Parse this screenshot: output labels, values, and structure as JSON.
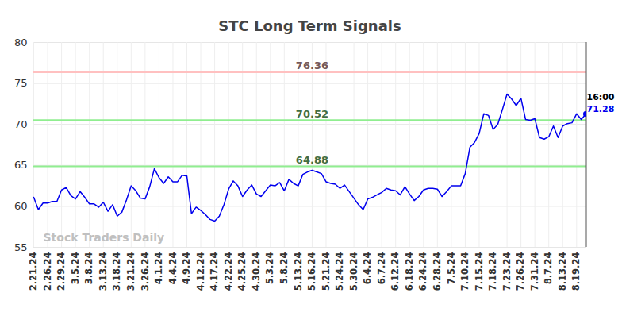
{
  "chart_data": {
    "type": "line",
    "title": "STC Long Term Signals",
    "watermark": "Stock Traders Daily",
    "categories": [
      "2.21.24",
      null,
      null,
      "2.26.24",
      null,
      null,
      "2.29.24",
      null,
      null,
      "3.5.24",
      null,
      null,
      "3.8.24",
      null,
      null,
      "3.13.24",
      null,
      null,
      "3.18.24",
      null,
      null,
      "3.21.24",
      null,
      null,
      "3.26.24",
      null,
      null,
      "4.1.24",
      null,
      null,
      "4.4.24",
      null,
      null,
      "4.9.24",
      null,
      null,
      "4.12.24",
      null,
      null,
      "4.17.24",
      null,
      null,
      "4.22.24",
      null,
      null,
      "4.25.24",
      null,
      null,
      "4.30.24",
      null,
      null,
      "5.3.24",
      null,
      null,
      "5.8.24",
      null,
      null,
      "5.13.24",
      null,
      null,
      "5.16.24",
      null,
      null,
      "5.21.24",
      null,
      null,
      "5.24.24",
      null,
      null,
      "5.30.24",
      null,
      null,
      "6.4.24",
      null,
      null,
      "6.7.24",
      null,
      null,
      "6.12.24",
      null,
      null,
      "6.18.24",
      null,
      null,
      "6.24.24",
      null,
      null,
      "6.28.24",
      null,
      null,
      "7.5.24",
      null,
      null,
      "7.10.24",
      null,
      null,
      "7.15.24",
      null,
      null,
      "7.18.24",
      null,
      null,
      "7.23.24",
      null,
      null,
      "7.26.24",
      null,
      null,
      "7.31.24",
      null,
      null,
      "8.7.24",
      null,
      null,
      "8.13.24",
      null,
      null,
      "8.19.24",
      null,
      null
    ],
    "values": [
      61.1,
      59.6,
      60.4,
      60.4,
      60.6,
      60.6,
      62.0,
      62.3,
      61.3,
      60.9,
      61.8,
      61.1,
      60.3,
      60.3,
      59.9,
      60.5,
      59.4,
      60.2,
      58.8,
      59.3,
      60.8,
      62.5,
      61.9,
      61.0,
      60.9,
      62.4,
      64.6,
      63.5,
      62.8,
      63.6,
      63.0,
      63.0,
      63.8,
      63.7,
      59.1,
      59.9,
      59.5,
      59.0,
      58.4,
      58.2,
      58.8,
      60.2,
      62.1,
      63.1,
      62.5,
      61.2,
      62.0,
      62.6,
      61.5,
      61.2,
      61.9,
      62.6,
      62.5,
      62.9,
      61.9,
      63.3,
      62.8,
      62.5,
      63.9,
      64.2,
      64.4,
      64.2,
      64.0,
      63.0,
      62.8,
      62.7,
      62.2,
      62.6,
      61.8,
      61.0,
      60.2,
      59.6,
      60.9,
      61.1,
      61.4,
      61.7,
      62.2,
      62.0,
      61.9,
      61.4,
      62.4,
      61.5,
      60.7,
      61.2,
      62.0,
      62.2,
      62.2,
      62.1,
      61.2,
      61.8,
      62.5,
      62.5,
      62.5,
      64.0,
      67.2,
      67.8,
      68.9,
      71.3,
      71.1,
      69.4,
      70.0,
      71.8,
      73.7,
      73.1,
      72.3,
      73.2,
      70.6,
      70.5,
      70.7,
      68.4,
      68.2,
      68.5,
      69.8,
      68.4,
      69.8,
      70.1,
      70.2,
      71.3,
      70.6,
      71.28
    ],
    "color": "#0000ee",
    "ylim": [
      55,
      80
    ],
    "yticks": [
      55,
      60,
      65,
      70,
      75,
      80
    ],
    "grid": true,
    "signals": [
      {
        "value": 76.36,
        "color": "#ffc0c0"
      },
      {
        "value": 70.52,
        "color": "#90ee90"
      },
      {
        "value": 64.88,
        "color": "#90ee90"
      }
    ],
    "last_point_label": "16:00"
  }
}
